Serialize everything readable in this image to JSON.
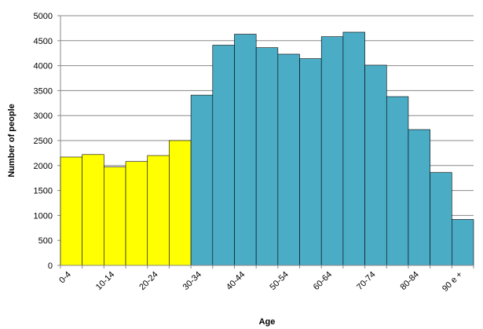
{
  "chart_data": {
    "type": "bar",
    "x_label": "Age",
    "y_label": "Number of people",
    "categories": [
      "0-4",
      null,
      "10-14",
      null,
      "20-24",
      null,
      "30-34",
      null,
      "40-44",
      null,
      "50-54",
      null,
      "60-64",
      null,
      "70-74",
      null,
      "80-84",
      null,
      "90 e +"
    ],
    "values": [
      2170,
      2220,
      1970,
      2080,
      2200,
      2500,
      3410,
      4410,
      4630,
      4360,
      4230,
      4140,
      4580,
      4670,
      4010,
      3380,
      2720,
      1860,
      920
    ],
    "colors": [
      "#ffff00",
      "#ffff00",
      "#ffff00",
      "#ffff00",
      "#ffff00",
      "#ffff00",
      "#4bacc6",
      "#4bacc6",
      "#4bacc6",
      "#4bacc6",
      "#4bacc6",
      "#4bacc6",
      "#4bacc6",
      "#4bacc6",
      "#4bacc6",
      "#4bacc6",
      "#4bacc6",
      "#4bacc6",
      "#4bacc6"
    ],
    "ylim": [
      0,
      5000
    ],
    "yticks": [
      0,
      500,
      1000,
      1500,
      2000,
      2500,
      3000,
      3500,
      4000,
      4500,
      5000
    ],
    "grid": true
  }
}
